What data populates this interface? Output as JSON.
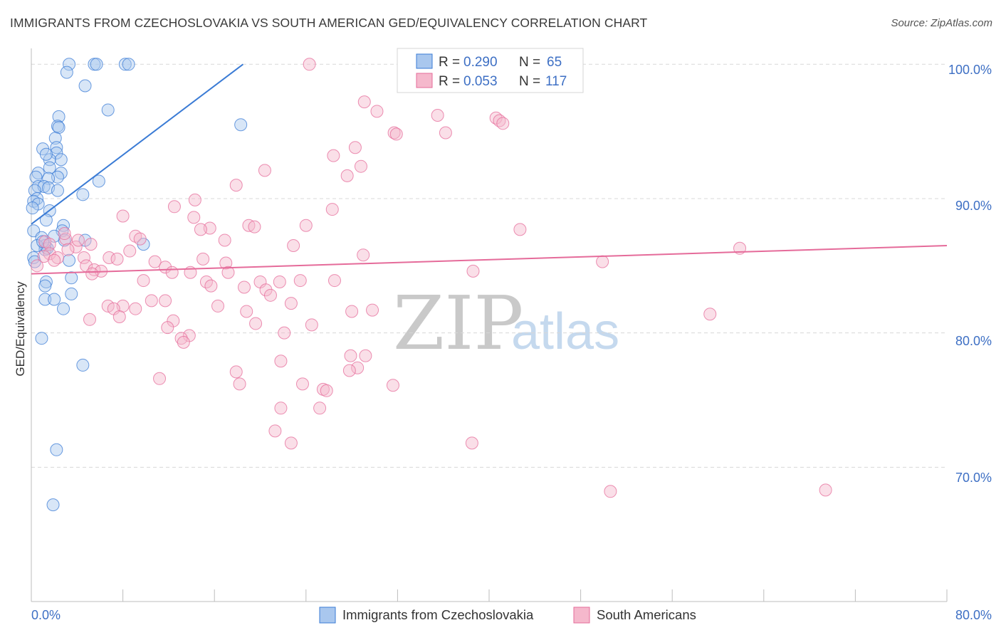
{
  "title": "IMMIGRANTS FROM CZECHOSLOVAKIA VS SOUTH AMERICAN GED/EQUIVALENCY CORRELATION CHART",
  "source": "Source: ZipAtlas.com",
  "watermark": {
    "zip": "ZIP",
    "atlas": "atlas"
  },
  "colors": {
    "blue": "#3a7bd5",
    "blue_fill": "#a9c7ee",
    "pink": "#e56b9a",
    "pink_fill": "#f5b8cc",
    "tick": "#3d6fc4",
    "grid": "#d8d8d8"
  },
  "stats": [
    {
      "r_label": "R =",
      "r_value": "0.290",
      "n_label": "N =",
      "n_value": "65"
    },
    {
      "r_label": "R =",
      "r_value": "0.053",
      "n_label": "N =",
      "n_value": "117"
    }
  ],
  "chart_data": {
    "type": "scatter",
    "title": "IMMIGRANTS FROM CZECHOSLOVAKIA VS SOUTH AMERICAN GED/EQUIVALENCY CORRELATION CHART",
    "xlabel": "",
    "ylabel": "GED/Equivalency",
    "xlim": [
      0,
      80
    ],
    "ylim": [
      60,
      101.5
    ],
    "x_tick_labels": [
      "0.0%",
      "80.0%"
    ],
    "y_ticks": [
      70,
      80,
      90,
      100
    ],
    "y_tick_labels": [
      "70.0%",
      "80.0%",
      "90.0%",
      "100.0%"
    ],
    "grid": true,
    "legend_position": "bottom-center",
    "series": [
      {
        "name": "Immigrants from Czechoslovakia",
        "color": "#3a7bd5",
        "R": 0.29,
        "N": 65,
        "trend": {
          "x": [
            0,
            18.5
          ],
          "y": [
            88.1,
            100
          ]
        },
        "points": [
          [
            3.3,
            100
          ],
          [
            5.5,
            100
          ],
          [
            5.7,
            100
          ],
          [
            8.2,
            100
          ],
          [
            8.5,
            100
          ],
          [
            3.1,
            99.4
          ],
          [
            4.7,
            98.4
          ],
          [
            6.7,
            96.6
          ],
          [
            2.4,
            96.1
          ],
          [
            2.3,
            95.4
          ],
          [
            2.4,
            95.3
          ],
          [
            18.3,
            95.5
          ],
          [
            2.1,
            94.5
          ],
          [
            2.2,
            93.8
          ],
          [
            1.0,
            93.7
          ],
          [
            2.2,
            93.4
          ],
          [
            2.6,
            92.9
          ],
          [
            1.6,
            92.9
          ],
          [
            1.3,
            93.3
          ],
          [
            1.6,
            92.3
          ],
          [
            0.6,
            91.9
          ],
          [
            2.6,
            91.9
          ],
          [
            0.4,
            91.6
          ],
          [
            2.3,
            91.6
          ],
          [
            1.5,
            91.5
          ],
          [
            5.9,
            91.3
          ],
          [
            0.6,
            90.9
          ],
          [
            1.1,
            90.9
          ],
          [
            1.5,
            90.8
          ],
          [
            0.3,
            90.6
          ],
          [
            2.3,
            90.6
          ],
          [
            4.5,
            90.3
          ],
          [
            0.5,
            90.0
          ],
          [
            0.2,
            89.8
          ],
          [
            0.6,
            89.6
          ],
          [
            0.1,
            89.3
          ],
          [
            1.6,
            89.1
          ],
          [
            1.3,
            88.4
          ],
          [
            2.8,
            88.0
          ],
          [
            2.7,
            87.6
          ],
          [
            0.2,
            87.6
          ],
          [
            0.9,
            87.1
          ],
          [
            2.9,
            86.9
          ],
          [
            1.2,
            86.5
          ],
          [
            4.7,
            86.9
          ],
          [
            1.2,
            86.2
          ],
          [
            1.4,
            86.3
          ],
          [
            9.8,
            86.6
          ],
          [
            0.2,
            85.6
          ],
          [
            3.3,
            85.4
          ],
          [
            3.5,
            84.1
          ],
          [
            1.3,
            83.8
          ],
          [
            1.2,
            83.5
          ],
          [
            3.5,
            82.9
          ],
          [
            1.2,
            82.5
          ],
          [
            2.0,
            82.5
          ],
          [
            2.8,
            81.8
          ],
          [
            0.9,
            79.6
          ],
          [
            4.5,
            77.6
          ],
          [
            2.2,
            71.3
          ],
          [
            1.9,
            67.2
          ],
          [
            0.3,
            85.3
          ],
          [
            0.5,
            86.5
          ],
          [
            1.0,
            86.8
          ],
          [
            2.0,
            87.2
          ]
        ]
      },
      {
        "name": "South Americans",
        "color": "#e56b9a",
        "R": 0.053,
        "N": 117,
        "trend": {
          "x": [
            0,
            80
          ],
          "y": [
            84.4,
            86.5
          ]
        },
        "points": [
          [
            24.3,
            100
          ],
          [
            32.7,
            100
          ],
          [
            29.1,
            97.2
          ],
          [
            30.2,
            96.5
          ],
          [
            35.5,
            96.2
          ],
          [
            40.6,
            96.0
          ],
          [
            40.9,
            95.8
          ],
          [
            41.2,
            95.6
          ],
          [
            31.7,
            94.9
          ],
          [
            31.9,
            94.8
          ],
          [
            36.2,
            94.9
          ],
          [
            28.3,
            93.8
          ],
          [
            26.4,
            93.2
          ],
          [
            28.8,
            92.4
          ],
          [
            20.4,
            92.1
          ],
          [
            27.6,
            91.7
          ],
          [
            17.9,
            91.0
          ],
          [
            14.3,
            89.9
          ],
          [
            12.5,
            89.4
          ],
          [
            26.3,
            89.2
          ],
          [
            8.0,
            88.7
          ],
          [
            14.2,
            88.6
          ],
          [
            19.0,
            88.0
          ],
          [
            19.5,
            87.9
          ],
          [
            24.0,
            88.0
          ],
          [
            15.6,
            87.8
          ],
          [
            14.8,
            87.7
          ],
          [
            42.7,
            87.7
          ],
          [
            9.1,
            87.2
          ],
          [
            3.0,
            87.0
          ],
          [
            2.9,
            87.4
          ],
          [
            9.5,
            87.0
          ],
          [
            16.9,
            86.9
          ],
          [
            1.2,
            86.8
          ],
          [
            1.6,
            86.6
          ],
          [
            5.2,
            86.6
          ],
          [
            3.9,
            86.4
          ],
          [
            22.9,
            86.5
          ],
          [
            61.9,
            86.3
          ],
          [
            8.6,
            86.1
          ],
          [
            1.6,
            85.9
          ],
          [
            29.0,
            85.8
          ],
          [
            1.1,
            85.7
          ],
          [
            2.3,
            85.6
          ],
          [
            4.6,
            85.6
          ],
          [
            6.8,
            85.6
          ],
          [
            7.5,
            85.5
          ],
          [
            10.8,
            85.3
          ],
          [
            15.0,
            85.5
          ],
          [
            17.0,
            85.2
          ],
          [
            49.9,
            85.3
          ],
          [
            4.8,
            85.0
          ],
          [
            5.5,
            84.7
          ],
          [
            6.1,
            84.6
          ],
          [
            11.7,
            84.9
          ],
          [
            13.9,
            84.5
          ],
          [
            12.3,
            84.5
          ],
          [
            17.2,
            84.5
          ],
          [
            38.6,
            84.6
          ],
          [
            5.3,
            84.4
          ],
          [
            9.8,
            83.9
          ],
          [
            15.3,
            83.8
          ],
          [
            20.0,
            83.8
          ],
          [
            21.7,
            83.8
          ],
          [
            23.5,
            83.9
          ],
          [
            26.5,
            83.9
          ],
          [
            15.7,
            83.5
          ],
          [
            18.6,
            83.4
          ],
          [
            20.5,
            83.2
          ],
          [
            20.9,
            82.8
          ],
          [
            10.5,
            82.4
          ],
          [
            11.7,
            82.4
          ],
          [
            22.7,
            82.2
          ],
          [
            8.0,
            82.0
          ],
          [
            6.7,
            82.0
          ],
          [
            16.3,
            82.0
          ],
          [
            7.2,
            81.8
          ],
          [
            9.1,
            81.8
          ],
          [
            29.8,
            81.7
          ],
          [
            18.8,
            81.6
          ],
          [
            28.0,
            81.6
          ],
          [
            7.7,
            81.2
          ],
          [
            59.3,
            81.4
          ],
          [
            5.1,
            81.0
          ],
          [
            12.4,
            80.9
          ],
          [
            19.6,
            80.7
          ],
          [
            24.5,
            80.6
          ],
          [
            11.9,
            80.4
          ],
          [
            22.1,
            80.0
          ],
          [
            13.8,
            79.8
          ],
          [
            13.1,
            79.6
          ],
          [
            13.3,
            79.3
          ],
          [
            27.9,
            78.3
          ],
          [
            29.2,
            78.3
          ],
          [
            21.8,
            77.9
          ],
          [
            28.5,
            77.4
          ],
          [
            17.9,
            77.1
          ],
          [
            27.8,
            77.2
          ],
          [
            11.2,
            76.6
          ],
          [
            18.2,
            76.2
          ],
          [
            23.7,
            76.2
          ],
          [
            31.6,
            76.1
          ],
          [
            25.5,
            75.8
          ],
          [
            25.8,
            75.7
          ],
          [
            21.8,
            74.4
          ],
          [
            25.2,
            74.4
          ],
          [
            21.3,
            72.7
          ],
          [
            22.7,
            71.8
          ],
          [
            38.5,
            71.8
          ],
          [
            50.6,
            68.2
          ],
          [
            69.4,
            68.3
          ],
          [
            0.5,
            85.0
          ],
          [
            2.0,
            85.4
          ],
          [
            3.2,
            86.2
          ],
          [
            4.1,
            86.9
          ]
        ]
      }
    ]
  },
  "legend": [
    {
      "label": "Immigrants from Czechoslovakia"
    },
    {
      "label": "South Americans"
    }
  ]
}
